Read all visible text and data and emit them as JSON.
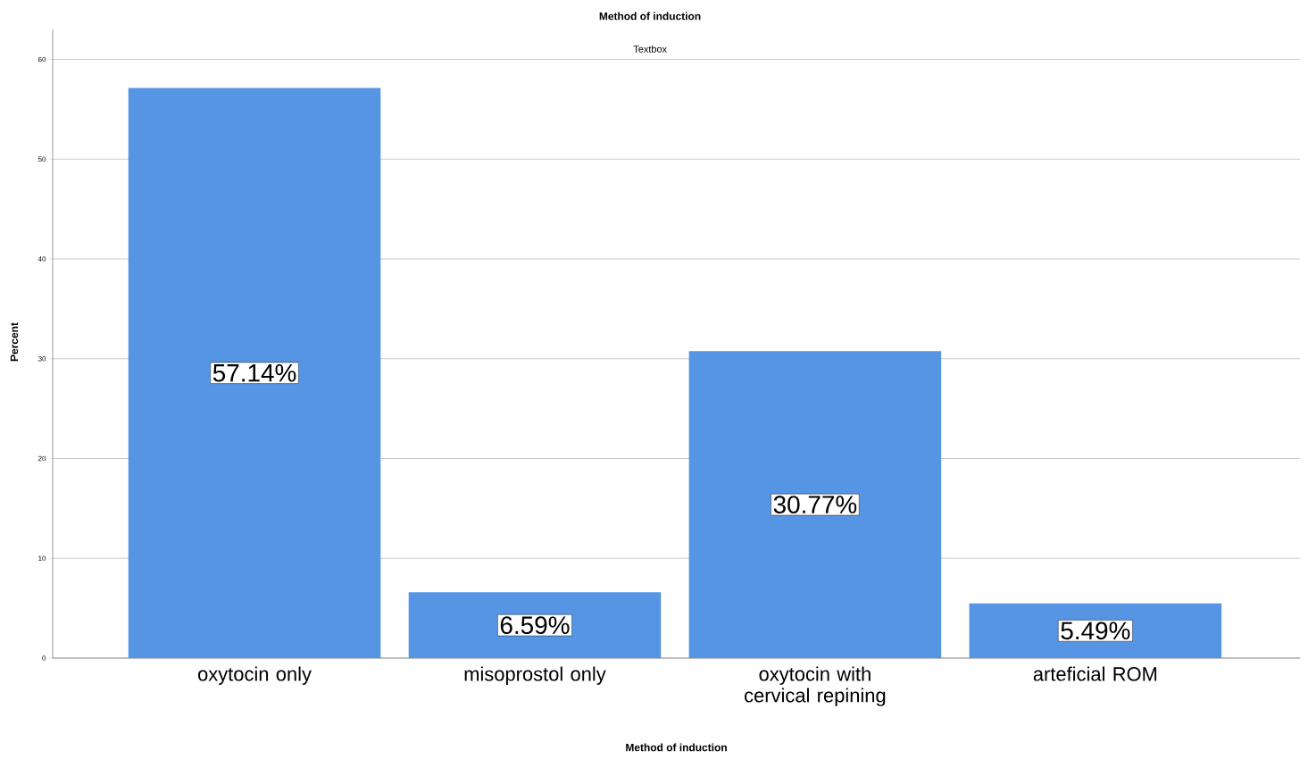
{
  "chart_data": {
    "type": "bar",
    "title": "Method of induction",
    "xlabel": "Method of induction",
    "ylabel": "Percent",
    "categories": [
      "oxytocin only",
      "misoprostol only",
      "oxytocin with cervical repining",
      "arteficial ROM"
    ],
    "values": [
      57.14,
      6.59,
      30.77,
      5.49
    ],
    "color": "#5595e3",
    "value_labels": [
      "57.14%",
      "6.59%",
      "30.77%",
      "5.49%"
    ],
    "ylim": [
      0,
      63
    ],
    "yticks": [
      0,
      10,
      20,
      30,
      40,
      50,
      60
    ],
    "grid": "y",
    "annotations": [
      "Textbox"
    ]
  }
}
